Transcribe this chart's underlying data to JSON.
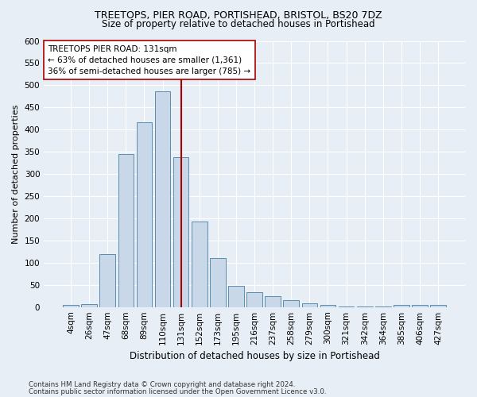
{
  "title1": "TREETOPS, PIER ROAD, PORTISHEAD, BRISTOL, BS20 7DZ",
  "title2": "Size of property relative to detached houses in Portishead",
  "xlabel": "Distribution of detached houses by size in Portishead",
  "ylabel": "Number of detached properties",
  "categories": [
    "4sqm",
    "26sqm",
    "47sqm",
    "68sqm",
    "89sqm",
    "110sqm",
    "131sqm",
    "152sqm",
    "173sqm",
    "195sqm",
    "216sqm",
    "237sqm",
    "258sqm",
    "279sqm",
    "300sqm",
    "321sqm",
    "342sqm",
    "364sqm",
    "385sqm",
    "406sqm",
    "427sqm"
  ],
  "values": [
    4,
    7,
    120,
    345,
    417,
    487,
    337,
    192,
    111,
    48,
    34,
    25,
    15,
    9,
    5,
    2,
    2,
    2,
    5,
    4,
    4
  ],
  "bar_color": "#c8d8e8",
  "bar_edge_color": "#5b8db0",
  "highlight_index": 6,
  "highlight_line_color": "#aa0000",
  "annotation_line1": "TREETOPS PIER ROAD: 131sqm",
  "annotation_line2": "← 63% of detached houses are smaller (1,361)",
  "annotation_line3": "36% of semi-detached houses are larger (785) →",
  "annotation_box_color": "white",
  "annotation_box_edge_color": "#aa0000",
  "ylim": [
    0,
    600
  ],
  "yticks": [
    0,
    50,
    100,
    150,
    200,
    250,
    300,
    350,
    400,
    450,
    500,
    550,
    600
  ],
  "footer1": "Contains HM Land Registry data © Crown copyright and database right 2024.",
  "footer2": "Contains public sector information licensed under the Open Government Licence v3.0.",
  "bg_color": "#e8eef5",
  "plot_bg_color": "#e8eef5"
}
